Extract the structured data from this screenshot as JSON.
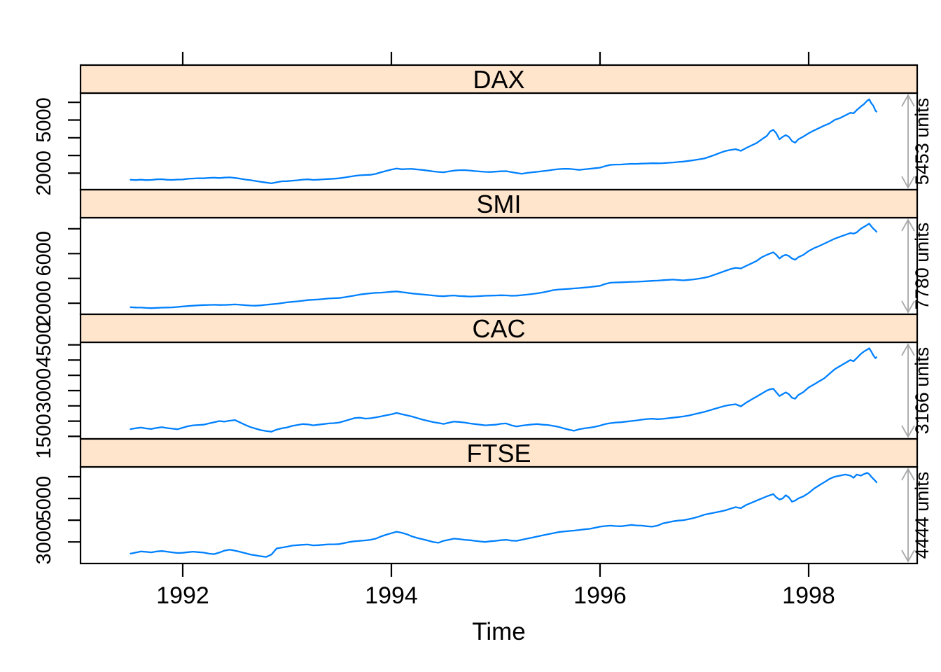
{
  "figure": {
    "line_color": "#0080ff",
    "strip_bg": "#ffe5cc",
    "strip_border": "#000000",
    "arrow_color": "#a8a8a8",
    "tick_color": "#000000"
  },
  "chart_data": {
    "type": "line",
    "title": "",
    "xlabel": "Time",
    "ylabel": "",
    "legend": "none",
    "grid": false,
    "xlim": [
      1991.02,
      1999.04
    ],
    "x_ticks": [
      1992,
      1994,
      1996,
      1998
    ],
    "x": [
      1991.5,
      1991.55,
      1991.6,
      1991.65,
      1991.7,
      1991.75,
      1991.8,
      1991.85,
      1991.9,
      1991.95,
      1992,
      1992.05,
      1992.1,
      1992.15,
      1992.2,
      1992.25,
      1992.3,
      1992.35,
      1992.4,
      1992.45,
      1992.5,
      1992.55,
      1992.6,
      1992.65,
      1992.7,
      1992.75,
      1992.8,
      1992.85,
      1992.9,
      1992.95,
      1993,
      1993.05,
      1993.1,
      1993.15,
      1993.2,
      1993.25,
      1993.3,
      1993.35,
      1993.4,
      1993.45,
      1993.5,
      1993.55,
      1993.6,
      1993.65,
      1993.7,
      1993.75,
      1993.8,
      1993.85,
      1993.9,
      1993.95,
      1994,
      1994.05,
      1994.1,
      1994.15,
      1994.2,
      1994.25,
      1994.3,
      1994.35,
      1994.4,
      1994.45,
      1994.5,
      1994.55,
      1994.6,
      1994.65,
      1994.7,
      1994.75,
      1994.8,
      1994.85,
      1994.9,
      1994.95,
      1995,
      1995.05,
      1995.1,
      1995.15,
      1995.2,
      1995.25,
      1995.3,
      1995.35,
      1995.4,
      1995.45,
      1995.5,
      1995.55,
      1995.6,
      1995.65,
      1995.7,
      1995.75,
      1995.8,
      1995.85,
      1995.9,
      1995.95,
      1996,
      1996.05,
      1996.1,
      1996.15,
      1996.2,
      1996.25,
      1996.3,
      1996.35,
      1996.4,
      1996.45,
      1996.5,
      1996.55,
      1996.6,
      1996.65,
      1996.7,
      1996.75,
      1996.8,
      1996.85,
      1996.9,
      1996.95,
      1997,
      1997.05,
      1997.1,
      1997.15,
      1997.2,
      1997.25,
      1997.3,
      1997.35,
      1997.4,
      1997.45,
      1997.5,
      1997.55,
      1997.6,
      1997.63,
      1997.66,
      1997.69,
      1997.72,
      1997.75,
      1997.78,
      1997.81,
      1997.84,
      1997.87,
      1997.9,
      1997.95,
      1998,
      1998.05,
      1998.1,
      1998.15,
      1998.2,
      1998.25,
      1998.3,
      1998.35,
      1998.4,
      1998.43,
      1998.46,
      1998.5,
      1998.53,
      1998.56,
      1998.58,
      1998.6,
      1998.62,
      1998.64,
      1998.65
    ],
    "series": [
      {
        "name": "DAX",
        "units_label": "5453 units",
        "ylim": [
          1068,
          6521
        ],
        "ticks": [
          2000,
          3000,
          4000,
          5000,
          6000
        ],
        "labeled_ticks": [
          5000,
          2000
        ],
        "values": [
          1628,
          1613,
          1632,
          1609,
          1620,
          1652,
          1662,
          1631,
          1621,
          1641,
          1646,
          1686,
          1701,
          1717,
          1711,
          1736,
          1747,
          1729,
          1751,
          1763,
          1733,
          1693,
          1641,
          1606,
          1557,
          1511,
          1471,
          1429,
          1486,
          1541,
          1551,
          1576,
          1601,
          1637,
          1651,
          1621,
          1632,
          1656,
          1671,
          1687,
          1711,
          1756,
          1801,
          1851,
          1881,
          1896,
          1911,
          1961,
          2051,
          2131,
          2201,
          2266,
          2221,
          2236,
          2241,
          2211,
          2181,
          2141,
          2101,
          2071,
          2051,
          2101,
          2146,
          2171,
          2176,
          2151,
          2121,
          2096,
          2076,
          2066,
          2086,
          2106,
          2116,
          2061,
          2011,
          1966,
          2016,
          2051,
          2081,
          2116,
          2151,
          2196,
          2231,
          2246,
          2251,
          2216,
          2186,
          2216,
          2251,
          2281,
          2311,
          2401,
          2471,
          2486,
          2491,
          2511,
          2531,
          2526,
          2541,
          2551,
          2561,
          2556,
          2566,
          2586,
          2606,
          2631,
          2656,
          2696,
          2736,
          2781,
          2831,
          2931,
          3031,
          3151,
          3251,
          3311,
          3356,
          3261,
          3421,
          3561,
          3701,
          3911,
          4111,
          4351,
          4451,
          4251,
          3911,
          4051,
          4151,
          4051,
          3811,
          3721,
          3911,
          4071,
          4251,
          4411,
          4551,
          4691,
          4811,
          5011,
          5111,
          5261,
          5411,
          5381,
          5561,
          5761,
          5901,
          6086,
          6171,
          5951,
          5801,
          5531,
          5474
        ]
      },
      {
        "name": "SMI",
        "units_label": "7780 units",
        "ylim": [
          1110,
          8890
        ],
        "ticks": [
          2000,
          4000,
          6000,
          8000
        ],
        "labeled_ticks": [
          6000,
          2000
        ],
        "values": [
          1678,
          1659,
          1649,
          1621,
          1607,
          1629,
          1648,
          1657,
          1667,
          1704,
          1744,
          1774,
          1804,
          1834,
          1854,
          1868,
          1874,
          1859,
          1864,
          1884,
          1904,
          1874,
          1844,
          1814,
          1804,
          1834,
          1874,
          1914,
          1954,
          2014,
          2074,
          2114,
          2154,
          2204,
          2254,
          2284,
          2304,
          2344,
          2384,
          2404,
          2424,
          2484,
          2554,
          2624,
          2704,
          2754,
          2804,
          2834,
          2854,
          2884,
          2924,
          2954,
          2894,
          2844,
          2784,
          2744,
          2704,
          2664,
          2624,
          2584,
          2564,
          2604,
          2624,
          2584,
          2564,
          2544,
          2554,
          2574,
          2604,
          2614,
          2624,
          2644,
          2634,
          2604,
          2614,
          2654,
          2694,
          2744,
          2804,
          2874,
          2954,
          3054,
          3104,
          3134,
          3154,
          3194,
          3224,
          3264,
          3304,
          3354,
          3404,
          3554,
          3654,
          3674,
          3684,
          3704,
          3724,
          3734,
          3754,
          3774,
          3804,
          3824,
          3854,
          3884,
          3904,
          3874,
          3844,
          3884,
          3924,
          3984,
          4054,
          4154,
          4304,
          4454,
          4604,
          4754,
          4854,
          4804,
          5004,
          5204,
          5404,
          5704,
          5904,
          6004,
          6104,
          5904,
          5604,
          5804,
          5904,
          5804,
          5604,
          5504,
          5704,
          5904,
          6204,
          6434,
          6604,
          6804,
          7004,
          7204,
          7354,
          7504,
          7654,
          7604,
          7704,
          8004,
          8154,
          8304,
          8412,
          8204,
          8004,
          7854,
          7755
        ]
      },
      {
        "name": "CAC",
        "units_label": "3166 units",
        "ylim": [
          1417,
          4583
        ],
        "ticks": [
          1500,
          2000,
          2500,
          3000,
          3500,
          4000,
          4500
        ],
        "labeled_ticks": [
          4500,
          3000,
          1500
        ],
        "values": [
          1738,
          1768,
          1788,
          1758,
          1743,
          1778,
          1803,
          1773,
          1753,
          1733,
          1783,
          1833,
          1863,
          1873,
          1883,
          1923,
          1963,
          2003,
          1983,
          2013,
          2033,
          1953,
          1873,
          1803,
          1753,
          1703,
          1673,
          1653,
          1723,
          1763,
          1793,
          1843,
          1873,
          1903,
          1893,
          1863,
          1883,
          1903,
          1923,
          1933,
          1953,
          2003,
          2053,
          2103,
          2113,
          2083,
          2093,
          2123,
          2153,
          2193,
          2223,
          2268,
          2228,
          2188,
          2148,
          2098,
          2048,
          2008,
          1968,
          1938,
          1908,
          1948,
          1983,
          1973,
          1953,
          1923,
          1903,
          1883,
          1863,
          1873,
          1883,
          1913,
          1923,
          1863,
          1823,
          1853,
          1873,
          1893,
          1903,
          1883,
          1873,
          1843,
          1813,
          1763,
          1723,
          1683,
          1733,
          1763,
          1783,
          1813,
          1853,
          1903,
          1933,
          1953,
          1963,
          1983,
          2003,
          2023,
          2048,
          2068,
          2078,
          2063,
          2073,
          2093,
          2113,
          2133,
          2153,
          2183,
          2223,
          2263,
          2303,
          2353,
          2403,
          2453,
          2503,
          2533,
          2553,
          2483,
          2603,
          2703,
          2803,
          2903,
          3003,
          3043,
          3063,
          2943,
          2823,
          2883,
          2943,
          2883,
          2763,
          2733,
          2853,
          2953,
          3103,
          3203,
          3303,
          3403,
          3553,
          3703,
          3803,
          3903,
          4003,
          3963,
          4063,
          4203,
          4283,
          4343,
          4388,
          4283,
          4153,
          4063,
          4095
        ]
      },
      {
        "name": "FTSE",
        "units_label": "4444 units",
        "ylim": [
          2008,
          6452
        ],
        "ticks": [
          3000,
          4000,
          5000,
          6000
        ],
        "labeled_ticks": [
          5000,
          3000
        ],
        "values": [
          2461,
          2511,
          2561,
          2541,
          2521,
          2561,
          2581,
          2551,
          2521,
          2491,
          2501,
          2531,
          2551,
          2531,
          2511,
          2461,
          2441,
          2511,
          2601,
          2641,
          2601,
          2541,
          2481,
          2421,
          2381,
          2341,
          2311,
          2421,
          2701,
          2741,
          2781,
          2831,
          2851,
          2871,
          2881,
          2841,
          2851,
          2871,
          2891,
          2891,
          2901,
          2951,
          3001,
          3031,
          3051,
          3071,
          3101,
          3151,
          3251,
          3331,
          3401,
          3471,
          3421,
          3351,
          3251,
          3181,
          3121,
          3061,
          3001,
          2961,
          3051,
          3101,
          3151,
          3131,
          3101,
          3081,
          3051,
          3021,
          3001,
          3031,
          3051,
          3081,
          3101,
          3061,
          3051,
          3101,
          3151,
          3201,
          3251,
          3301,
          3351,
          3401,
          3451,
          3481,
          3501,
          3521,
          3551,
          3581,
          3601,
          3651,
          3701,
          3731,
          3751,
          3731,
          3721,
          3751,
          3781,
          3761,
          3751,
          3721,
          3701,
          3751,
          3851,
          3901,
          3951,
          3981,
          4001,
          4051,
          4101,
          4171,
          4251,
          4301,
          4351,
          4401,
          4451,
          4531,
          4601,
          4551,
          4701,
          4801,
          4901,
          5001,
          5101,
          5151,
          5201,
          5051,
          4951,
          5001,
          5151,
          5051,
          4851,
          4901,
          5001,
          5101,
          5251,
          5451,
          5601,
          5751,
          5901,
          6001,
          6051,
          6101,
          6051,
          5951,
          6101,
          6051,
          6121,
          6179,
          6121,
          6001,
          5901,
          5801,
          5742
        ]
      }
    ]
  }
}
